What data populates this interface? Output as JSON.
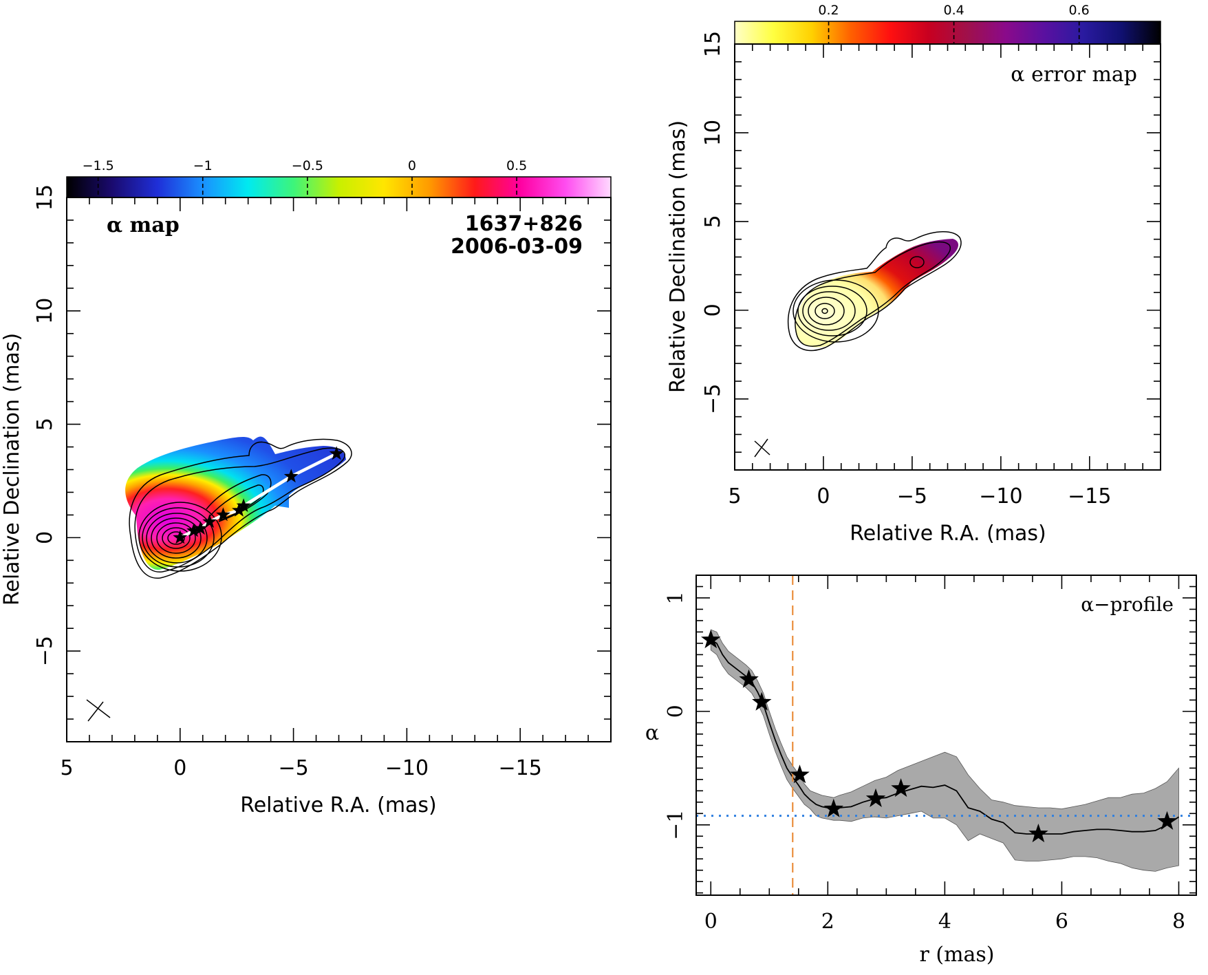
{
  "chart_data": [
    {
      "type": "heatmap",
      "title": "α map",
      "annotations": [
        "1637+826",
        "2006-03-09"
      ],
      "xlabel": "Relative R.A. (mas)",
      "ylabel": "Relative Declination (mas)",
      "xlim": [
        5,
        -19
      ],
      "ylim": [
        -9,
        15
      ],
      "xticks": [
        5,
        0,
        -5,
        -10,
        -15
      ],
      "yticks": [
        15,
        10,
        5,
        0,
        -5
      ],
      "colorbar": {
        "range": [
          -1.65,
          0.95
        ],
        "ticks": [
          -1.5,
          -1,
          -0.5,
          0,
          0.5
        ],
        "ticklabels": [
          "−1.5",
          "−1",
          "−0.5",
          "0",
          "0.5"
        ],
        "colors": [
          "#000000",
          "#1a0a6e",
          "#1f2fd8",
          "#1a90ff",
          "#00eaf0",
          "#3df57a",
          "#c8f000",
          "#ffe600",
          "#ff9a00",
          "#ff1a1a",
          "#ff00a0",
          "#ff4df0",
          "#ffd9ff"
        ]
      },
      "ridge_markers": [
        {
          "x": 0.0,
          "y": 0.0
        },
        {
          "x": -0.6,
          "y": 0.3
        },
        {
          "x": -0.9,
          "y": 0.4
        },
        {
          "x": -1.3,
          "y": 0.7
        },
        {
          "x": -1.9,
          "y": 1.0
        },
        {
          "x": -2.6,
          "y": 1.2
        },
        {
          "x": -2.8,
          "y": 1.4
        },
        {
          "x": -4.9,
          "y": 2.7
        },
        {
          "x": -6.9,
          "y": 3.7
        }
      ],
      "grid": false
    },
    {
      "type": "heatmap",
      "title": "α error map",
      "xlabel": "Relative R.A. (mas)",
      "ylabel": "Relative Declination (mas)",
      "xlim": [
        5,
        -19
      ],
      "ylim": [
        -9,
        15
      ],
      "xticks": [
        5,
        0,
        -5,
        -10,
        -15
      ],
      "yticks": [
        15,
        10,
        5,
        0,
        -5
      ],
      "colorbar": {
        "range": [
          0.05,
          0.73
        ],
        "ticks": [
          0.2,
          0.4,
          0.6
        ],
        "ticklabels": [
          "0.2",
          "0.4",
          "0.6"
        ],
        "colors": [
          "#ffffc8",
          "#ffff40",
          "#ffd000",
          "#ff6000",
          "#ff1010",
          "#c80020",
          "#a0104a",
          "#8a0a8a",
          "#5a10a0",
          "#2a1aa0",
          "#101070",
          "#000000"
        ]
      },
      "grid": false
    },
    {
      "type": "line",
      "title": "α−profile",
      "xlabel": "r (mas)",
      "ylabel": "α",
      "xlim": [
        -0.25,
        8.3
      ],
      "ylim": [
        -1.62,
        1.2
      ],
      "xticks": [
        0,
        2,
        4,
        6,
        8
      ],
      "yticks": [
        1,
        0,
        -1
      ],
      "yticklabels": [
        "1",
        "0",
        "−1"
      ],
      "x": [
        0,
        0.1,
        0.2,
        0.3,
        0.4,
        0.5,
        0.6,
        0.7,
        0.8,
        0.9,
        1.0,
        1.1,
        1.2,
        1.3,
        1.4,
        1.5,
        1.6,
        1.7,
        1.8,
        1.9,
        2.0,
        2.1,
        2.2,
        2.4,
        2.6,
        2.8,
        3.0,
        3.2,
        3.4,
        3.6,
        3.8,
        4.0,
        4.2,
        4.4,
        4.6,
        4.8,
        5.0,
        5.2,
        5.4,
        5.6,
        5.8,
        6.0,
        6.2,
        6.4,
        6.6,
        6.8,
        7.0,
        7.2,
        7.4,
        7.6,
        7.8,
        8.0
      ],
      "series": [
        {
          "name": "",
          "values": [
            0.63,
            0.6,
            0.5,
            0.43,
            0.39,
            0.35,
            0.31,
            0.26,
            0.17,
            0.06,
            -0.1,
            -0.25,
            -0.38,
            -0.5,
            -0.58,
            -0.65,
            -0.73,
            -0.78,
            -0.82,
            -0.84,
            -0.85,
            -0.86,
            -0.85,
            -0.84,
            -0.8,
            -0.77,
            -0.76,
            -0.72,
            -0.69,
            -0.66,
            -0.67,
            -0.65,
            -0.7,
            -0.85,
            -0.88,
            -0.95,
            -0.98,
            -1.07,
            -1.08,
            -1.08,
            -1.08,
            -1.08,
            -1.06,
            -1.05,
            -1.04,
            -1.04,
            -1.05,
            -1.06,
            -1.06,
            -1.05,
            -1.0,
            -0.93
          ],
          "upper": [
            0.72,
            0.7,
            0.6,
            0.53,
            0.49,
            0.45,
            0.41,
            0.36,
            0.27,
            0.16,
            0.0,
            -0.15,
            -0.28,
            -0.4,
            -0.48,
            -0.55,
            -0.64,
            -0.7,
            -0.72,
            -0.74,
            -0.75,
            -0.76,
            -0.74,
            -0.71,
            -0.66,
            -0.61,
            -0.58,
            -0.52,
            -0.48,
            -0.44,
            -0.4,
            -0.36,
            -0.4,
            -0.56,
            -0.68,
            -0.78,
            -0.8,
            -0.83,
            -0.84,
            -0.85,
            -0.85,
            -0.86,
            -0.84,
            -0.82,
            -0.79,
            -0.76,
            -0.76,
            -0.73,
            -0.72,
            -0.68,
            -0.62,
            -0.5
          ],
          "lower": [
            0.54,
            0.5,
            0.4,
            0.33,
            0.29,
            0.25,
            0.21,
            0.16,
            0.07,
            -0.04,
            -0.2,
            -0.35,
            -0.48,
            -0.6,
            -0.68,
            -0.75,
            -0.82,
            -0.86,
            -0.92,
            -0.94,
            -0.95,
            -0.96,
            -0.96,
            -0.97,
            -0.94,
            -0.93,
            -0.94,
            -0.92,
            -0.9,
            -0.88,
            -0.94,
            -0.94,
            -1.0,
            -1.14,
            -1.08,
            -1.12,
            -1.16,
            -1.31,
            -1.32,
            -1.32,
            -1.31,
            -1.3,
            -1.28,
            -1.28,
            -1.29,
            -1.32,
            -1.34,
            -1.38,
            -1.4,
            -1.41,
            -1.38,
            -1.36
          ]
        }
      ],
      "markers": [
        {
          "x": 0.0,
          "y": 0.63
        },
        {
          "x": 0.65,
          "y": 0.28
        },
        {
          "x": 0.87,
          "y": 0.08
        },
        {
          "x": 1.52,
          "y": -0.56
        },
        {
          "x": 2.1,
          "y": -0.86
        },
        {
          "x": 2.82,
          "y": -0.77
        },
        {
          "x": 3.25,
          "y": -0.68
        },
        {
          "x": 5.6,
          "y": -1.08
        },
        {
          "x": 7.8,
          "y": -0.97
        }
      ],
      "reference_lines": {
        "vertical_x": 1.4,
        "horizontal_y": -0.92
      },
      "colors": {
        "band": "#a9a9a9",
        "vertical_line": "#e8842c",
        "horizontal_line": "#2f7fe0"
      },
      "grid": false
    }
  ]
}
